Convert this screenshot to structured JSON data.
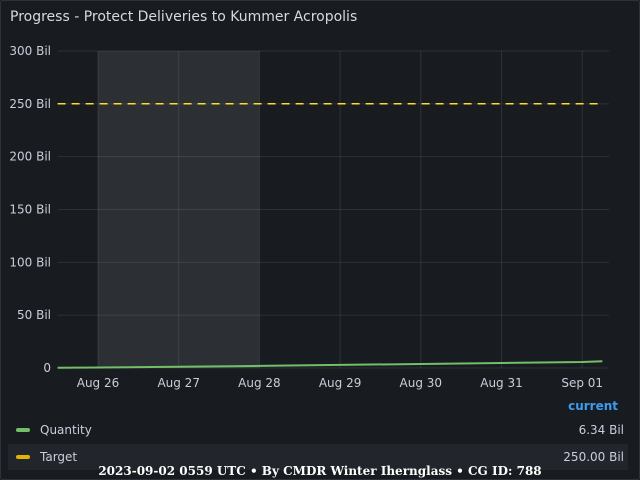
{
  "panel": {
    "title": "Progress - Protect Deliveries to Kummer Acropolis"
  },
  "chart_data": {
    "type": "line",
    "title": "Progress - Protect Deliveries to Kummer Acropolis",
    "xlabel": "",
    "ylabel": "",
    "x_ticks": [
      "Aug 26",
      "Aug 27",
      "Aug 28",
      "Aug 29",
      "Aug 30",
      "Aug 31",
      "Sep 01"
    ],
    "y_ticks": [
      "0",
      "50 Bil",
      "100 Bil",
      "150 Bil",
      "200 Bil",
      "250 Bil",
      "300 Bil"
    ],
    "ylim": [
      0,
      300
    ],
    "y_unit": "Bil",
    "x_range_days_from_aug26": [
      -0.4,
      6.3
    ],
    "highlight_range": [
      "Aug 26",
      "Aug 28"
    ],
    "grid": true,
    "legend_placement": "bottom",
    "series": [
      {
        "name": "Quantity",
        "color": "#73bf69",
        "style": "solid",
        "points": [
          {
            "x": "Aug 25 12:00",
            "y": 0.2
          },
          {
            "x": "Aug 26",
            "y": 0.5
          },
          {
            "x": "Aug 27",
            "y": 1.2
          },
          {
            "x": "Aug 28",
            "y": 2.0
          },
          {
            "x": "Aug 29",
            "y": 2.9
          },
          {
            "x": "Aug 30",
            "y": 3.8
          },
          {
            "x": "Aug 31",
            "y": 4.7
          },
          {
            "x": "Sep 01",
            "y": 5.7
          },
          {
            "x": "Sep 01 06:00",
            "y": 6.34
          }
        ],
        "current": "6.34 Bil"
      },
      {
        "name": "Target",
        "color": "#fade2a",
        "style": "dashed",
        "points": [
          {
            "x": "Aug 25 12:00",
            "y": 250
          },
          {
            "x": "Sep 01 06:00",
            "y": 250
          }
        ],
        "current": "250.00 Bil"
      }
    ]
  },
  "legend": {
    "header": "current",
    "items": [
      {
        "name": "Quantity",
        "value": "6.34 Bil",
        "color": "#73bf69"
      },
      {
        "name": "Target",
        "value": "250.00 Bil",
        "color": "#e0b400"
      }
    ]
  },
  "footer": {
    "text": "2023-09-02 0559 UTC • By CMDR Winter Iherngl​ass • CG ID: 788"
  }
}
